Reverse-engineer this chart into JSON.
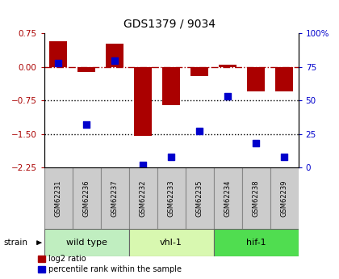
{
  "title": "GDS1379 / 9034",
  "samples": [
    "GSM62231",
    "GSM62236",
    "GSM62237",
    "GSM62232",
    "GSM62233",
    "GSM62235",
    "GSM62234",
    "GSM62238",
    "GSM62239"
  ],
  "log2_ratio": [
    0.58,
    -0.12,
    0.52,
    -1.55,
    -0.85,
    -0.2,
    0.05,
    -0.55,
    -0.55
  ],
  "percentile_rank": [
    78,
    32,
    80,
    2,
    8,
    27,
    53,
    18,
    8
  ],
  "groups": [
    {
      "label": "wild type",
      "indices": [
        0,
        1,
        2
      ],
      "color": "#c0eec0"
    },
    {
      "label": "vhl-1",
      "indices": [
        3,
        4,
        5
      ],
      "color": "#d8f8b0"
    },
    {
      "label": "hif-1",
      "indices": [
        6,
        7,
        8
      ],
      "color": "#50dd50"
    }
  ],
  "ylim_left": [
    -2.25,
    0.75
  ],
  "ylim_right": [
    0,
    100
  ],
  "yticks_left": [
    0.75,
    0,
    -0.75,
    -1.5,
    -2.25
  ],
  "yticks_right": [
    100,
    75,
    50,
    25,
    0
  ],
  "bar_color": "#aa0000",
  "dot_color": "#0000cc",
  "dotted_lines": [
    -0.75,
    -1.5
  ],
  "bar_width": 0.65,
  "dot_size": 40,
  "legend_bar": "log2 ratio",
  "legend_dot": "percentile rank within the sample",
  "label_bg": "#cccccc"
}
